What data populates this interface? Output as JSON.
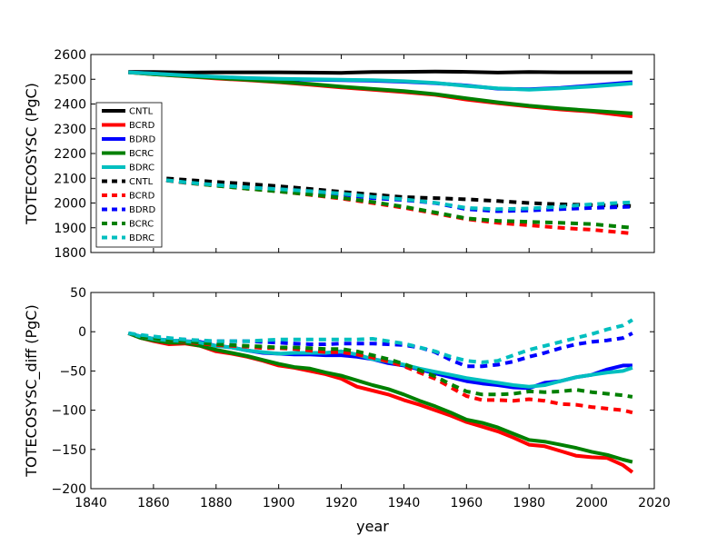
{
  "xlabel": "year",
  "chart_data": [
    {
      "type": "line",
      "ylabel": "TOTECOSYSC (PgC)",
      "xlim": [
        1840,
        2020
      ],
      "ylim": [
        1800,
        2600
      ],
      "xticks": [
        "1840",
        "1860",
        "1880",
        "1900",
        "1920",
        "1940",
        "1960",
        "1980",
        "2000",
        "2020"
      ],
      "yticks": [
        "1800",
        "1900",
        "2000",
        "2100",
        "2200",
        "2300",
        "2400",
        "2500",
        "2600"
      ],
      "x": [
        1852,
        1860,
        1870,
        1880,
        1890,
        1900,
        1910,
        1920,
        1930,
        1940,
        1950,
        1960,
        1970,
        1980,
        1990,
        2000,
        2013
      ],
      "legend_position": "center-left",
      "series": [
        {
          "name": "CNTL",
          "color": "#000000",
          "dash": false,
          "values": [
            2530,
            2529,
            2527,
            2528,
            2528,
            2528,
            2527,
            2526,
            2529,
            2530,
            2531,
            2530,
            2527,
            2529,
            2528,
            2528,
            2528
          ]
        },
        {
          "name": "BCRD",
          "color": "#ff0000",
          "dash": false,
          "values": [
            2528,
            2520,
            2512,
            2503,
            2496,
            2488,
            2478,
            2467,
            2458,
            2448,
            2437,
            2418,
            2403,
            2390,
            2378,
            2369,
            2350
          ]
        },
        {
          "name": "BDRD",
          "color": "#0000ff",
          "dash": false,
          "values": [
            2528,
            2523,
            2515,
            2508,
            2503,
            2500,
            2498,
            2496,
            2494,
            2490,
            2484,
            2475,
            2462,
            2460,
            2465,
            2475,
            2488
          ]
        },
        {
          "name": "BCRC",
          "color": "#008000",
          "dash": false,
          "values": [
            2528,
            2520,
            2513,
            2505,
            2498,
            2490,
            2481,
            2470,
            2461,
            2452,
            2440,
            2423,
            2407,
            2393,
            2382,
            2373,
            2362
          ]
        },
        {
          "name": "BDRC",
          "color": "#00bfbf",
          "dash": false,
          "values": [
            2528,
            2523,
            2516,
            2510,
            2505,
            2502,
            2500,
            2498,
            2496,
            2492,
            2485,
            2473,
            2463,
            2458,
            2463,
            2471,
            2483
          ]
        },
        {
          "name": "CNTL",
          "color": "#000000",
          "dash": true,
          "values": [
            2110,
            2103,
            2094,
            2085,
            2077,
            2068,
            2057,
            2045,
            2034,
            2024,
            2020,
            2015,
            2008,
            2000,
            1995,
            1992,
            1988
          ]
        },
        {
          "name": "BCRD",
          "color": "#ff0000",
          "dash": true,
          "values": [
            2110,
            2098,
            2082,
            2070,
            2058,
            2047,
            2033,
            2018,
            2000,
            1981,
            1958,
            1935,
            1920,
            1910,
            1900,
            1892,
            1877
          ]
        },
        {
          "name": "BDRD",
          "color": "#0000ff",
          "dash": true,
          "values": [
            2110,
            2098,
            2083,
            2072,
            2062,
            2055,
            2046,
            2035,
            2020,
            2012,
            2000,
            1975,
            1967,
            1970,
            1975,
            1980,
            1985
          ]
        },
        {
          "name": "BCRC",
          "color": "#008000",
          "dash": true,
          "values": [
            2110,
            2098,
            2083,
            2070,
            2058,
            2047,
            2035,
            2021,
            2004,
            1985,
            1962,
            1938,
            1928,
            1924,
            1920,
            1915,
            1900
          ]
        },
        {
          "name": "BDRC",
          "color": "#00bfbf",
          "dash": true,
          "values": [
            2110,
            2098,
            2084,
            2073,
            2063,
            2056,
            2048,
            2038,
            2025,
            2015,
            2001,
            1980,
            1975,
            1978,
            1985,
            1995,
            2003
          ]
        }
      ]
    },
    {
      "type": "line",
      "ylabel": "TOTECOSYSC_diff (PgC)",
      "xlim": [
        1840,
        2020
      ],
      "ylim": [
        -200,
        50
      ],
      "xticks": [
        "1840",
        "1860",
        "1880",
        "1900",
        "1920",
        "1940",
        "1960",
        "1980",
        "2000",
        "2020"
      ],
      "yticks": [
        "−200",
        "−150",
        "−100",
        "−50",
        "0",
        "50"
      ],
      "x": [
        1852,
        1856,
        1860,
        1865,
        1870,
        1875,
        1880,
        1885,
        1890,
        1895,
        1900,
        1905,
        1910,
        1915,
        1920,
        1925,
        1930,
        1935,
        1940,
        1945,
        1950,
        1955,
        1960,
        1965,
        1970,
        1975,
        1980,
        1985,
        1990,
        1995,
        2000,
        2005,
        2010,
        2013
      ],
      "series": [
        {
          "name": "BCRD",
          "color": "#ff0000",
          "dash": false,
          "values": [
            -2,
            -8,
            -12,
            -16,
            -15,
            -18,
            -25,
            -28,
            -32,
            -37,
            -43,
            -46,
            -50,
            -54,
            -60,
            -70,
            -75,
            -80,
            -87,
            -93,
            -100,
            -107,
            -115,
            -121,
            -127,
            -135,
            -144,
            -146,
            -152,
            -158,
            -160,
            -161,
            -170,
            -179
          ]
        },
        {
          "name": "BDRD",
          "color": "#0000ff",
          "dash": false,
          "values": [
            -2,
            -6,
            -9,
            -11,
            -12,
            -13,
            -18,
            -20,
            -24,
            -27,
            -28,
            -29,
            -29,
            -30,
            -30,
            -32,
            -35,
            -40,
            -43,
            -48,
            -53,
            -58,
            -63,
            -66,
            -68,
            -71,
            -72,
            -65,
            -63,
            -58,
            -55,
            -48,
            -43,
            -43
          ]
        },
        {
          "name": "BCRC",
          "color": "#008000",
          "dash": false,
          "values": [
            -2,
            -8,
            -11,
            -14,
            -14,
            -18,
            -23,
            -27,
            -31,
            -36,
            -41,
            -45,
            -47,
            -52,
            -56,
            -62,
            -68,
            -73,
            -80,
            -88,
            -95,
            -103,
            -112,
            -116,
            -122,
            -130,
            -138,
            -140,
            -144,
            -148,
            -153,
            -157,
            -163,
            -166
          ]
        },
        {
          "name": "BDRC",
          "color": "#00bfbf",
          "dash": false,
          "values": [
            -2,
            -6,
            -9,
            -11,
            -12,
            -14,
            -18,
            -20,
            -24,
            -26,
            -28,
            -27,
            -27,
            -27,
            -25,
            -29,
            -35,
            -38,
            -42,
            -47,
            -51,
            -55,
            -59,
            -62,
            -65,
            -68,
            -70,
            -68,
            -63,
            -58,
            -55,
            -52,
            -50,
            -46
          ]
        },
        {
          "name": "BCRD",
          "color": "#ff0000",
          "dash": true,
          "values": [
            -2,
            -6,
            -8,
            -11,
            -13,
            -15,
            -17,
            -18,
            -19,
            -21,
            -21,
            -22,
            -24,
            -26,
            -26,
            -29,
            -33,
            -38,
            -44,
            -52,
            -60,
            -71,
            -82,
            -87,
            -87,
            -88,
            -86,
            -88,
            -92,
            -93,
            -96,
            -98,
            -100,
            -103
          ]
        },
        {
          "name": "BDRD",
          "color": "#0000ff",
          "dash": true,
          "values": [
            -2,
            -5,
            -7,
            -9,
            -10,
            -12,
            -12,
            -12,
            -12,
            -13,
            -14,
            -15,
            -16,
            -16,
            -15,
            -15,
            -15,
            -16,
            -17,
            -20,
            -26,
            -36,
            -44,
            -44,
            -42,
            -38,
            -32,
            -27,
            -21,
            -16,
            -13,
            -11,
            -8,
            -2
          ]
        },
        {
          "name": "BCRC",
          "color": "#008000",
          "dash": true,
          "values": [
            -2,
            -6,
            -8,
            -11,
            -12,
            -14,
            -16,
            -17,
            -18,
            -19,
            -20,
            -20,
            -21,
            -22,
            -22,
            -25,
            -30,
            -35,
            -41,
            -49,
            -57,
            -67,
            -76,
            -80,
            -80,
            -79,
            -76,
            -77,
            -76,
            -74,
            -77,
            -79,
            -81,
            -83
          ]
        },
        {
          "name": "BDRC",
          "color": "#00bfbf",
          "dash": true,
          "values": [
            -2,
            -4,
            -6,
            -8,
            -10,
            -11,
            -12,
            -12,
            -12,
            -11,
            -10,
            -10,
            -10,
            -10,
            -10,
            -10,
            -9,
            -12,
            -15,
            -20,
            -25,
            -32,
            -37,
            -39,
            -37,
            -30,
            -23,
            -18,
            -13,
            -8,
            -3,
            3,
            8,
            15
          ]
        }
      ]
    }
  ]
}
